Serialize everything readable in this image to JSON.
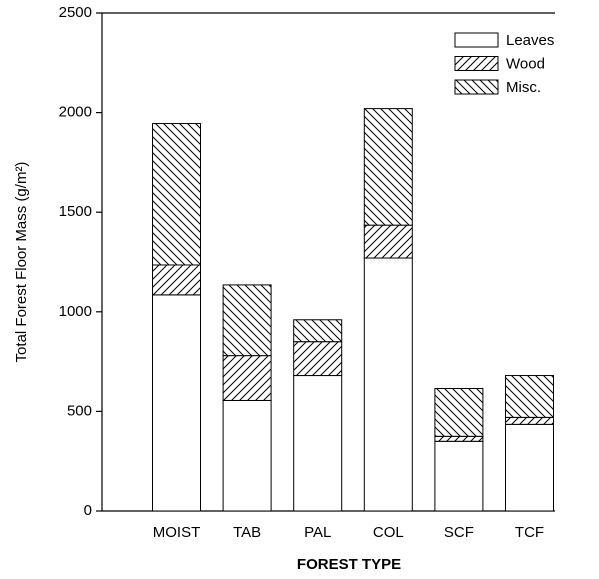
{
  "chart_data": {
    "type": "stacked_bar",
    "y_label": "Total Forest Floor Mass (g/m²)",
    "x_label": "FOREST TYPE",
    "categories": [
      "MOIST",
      "TAB",
      "PAL",
      "COL",
      "SCF",
      "TCF"
    ],
    "series": [
      {
        "name": "Leaves",
        "color": "#000000",
        "pattern": "none",
        "values": [
          1085,
          555,
          680,
          1270,
          350,
          435
        ]
      },
      {
        "name": "Wood",
        "color": "#000000",
        "pattern": "forward",
        "values": [
          150,
          225,
          170,
          165,
          25,
          35
        ]
      },
      {
        "name": "Misc.",
        "color": "#000000",
        "pattern": "backward",
        "values": [
          710,
          355,
          110,
          585,
          240,
          210
        ]
      }
    ],
    "ylim": [
      0,
      2500
    ],
    "yticks": [
      0,
      500,
      1000,
      1500,
      2000,
      2500
    ],
    "legend": "upper right",
    "grid": false
  }
}
